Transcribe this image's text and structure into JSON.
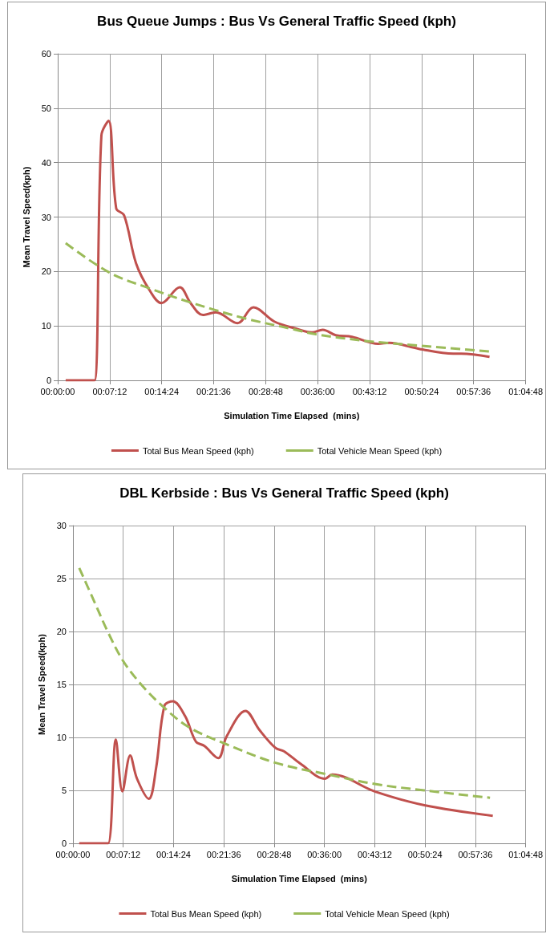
{
  "chart_data": [
    {
      "type": "line",
      "title": "Bus Queue Jumps : Bus Vs General Traffic Speed (kph)",
      "xlabel": "Simulation Time Elapsed  (mins)",
      "ylabel": "Mean Travel Speed(kph)",
      "xlim": [
        0,
        64.8
      ],
      "xticks": [
        {
          "value": 0,
          "label": "00:00:00"
        },
        {
          "value": 7.2,
          "label": "00:07:12"
        },
        {
          "value": 14.4,
          "label": "00:14:24"
        },
        {
          "value": 21.6,
          "label": "00:21:36"
        },
        {
          "value": 28.8,
          "label": "00:28:48"
        },
        {
          "value": 36,
          "label": "00:36:00"
        },
        {
          "value": 43.2,
          "label": "00:43:12"
        },
        {
          "value": 50.4,
          "label": "00:50:24"
        },
        {
          "value": 57.6,
          "label": "00:57:36"
        },
        {
          "value": 64.8,
          "label": "01:04:48"
        }
      ],
      "ylim": [
        0,
        60
      ],
      "yticks": [
        0,
        10,
        20,
        30,
        40,
        50,
        60
      ],
      "grid": true,
      "legend": "bottom",
      "marker": "none",
      "series": [
        {
          "name": "Total Bus Mean Speed (kph)",
          "color": "#c0504d",
          "line_style": "solid",
          "x": [
            1.1,
            4.2,
            5.1,
            6.05,
            7.05,
            8.1,
            9.2,
            10.85,
            12.7,
            14.35,
            16.9,
            18.4,
            20.1,
            21.9,
            24.9,
            27.1,
            30.0,
            33.0,
            35.2,
            36.7,
            38.5,
            40.75,
            44.4,
            45.9,
            50.0,
            54.8,
            55.9,
            59.8
          ],
          "values": [
            0,
            0,
            0,
            45,
            47.7,
            31.6,
            30.3,
            21.5,
            16.6,
            14.2,
            17.1,
            14.2,
            12.0,
            12.5,
            10.5,
            13.4,
            10.8,
            9.5,
            8.8,
            9.3,
            8.3,
            8.0,
            6.7,
            6.9,
            5.8,
            4.9,
            4.9,
            4.3
          ]
        },
        {
          "name": "Total Vehicle Mean Speed (kph)",
          "color": "#9bbb59",
          "line_style": "dashed",
          "x": [
            1.1,
            7.15,
            12.7,
            18.2,
            25.6,
            32.6,
            35.6,
            42.9,
            50.0,
            59.8
          ],
          "values": [
            25.2,
            19.8,
            16.9,
            14.4,
            11.5,
            9.4,
            8.5,
            7.2,
            6.4,
            5.3
          ]
        }
      ]
    },
    {
      "type": "line",
      "title": "DBL Kerbside : Bus Vs General Traffic Speed (kph)",
      "xlabel": "Simulation Time Elapsed  (mins)",
      "ylabel": "Mean Travel Speed(kph)",
      "xlim": [
        0,
        64.8
      ],
      "xticks": [
        {
          "value": 0,
          "label": "00:00:00"
        },
        {
          "value": 7.2,
          "label": "00:07:12"
        },
        {
          "value": 14.4,
          "label": "00:14:24"
        },
        {
          "value": 21.6,
          "label": "00:21:36"
        },
        {
          "value": 28.8,
          "label": "00:28:48"
        },
        {
          "value": 36,
          "label": "00:36:00"
        },
        {
          "value": 43.2,
          "label": "00:43:12"
        },
        {
          "value": 50.4,
          "label": "00:50:24"
        },
        {
          "value": 57.6,
          "label": "00:57:36"
        },
        {
          "value": 64.8,
          "label": "01:04:48"
        }
      ],
      "ylim": [
        0,
        30
      ],
      "yticks": [
        0,
        5,
        10,
        15,
        20,
        25,
        30
      ],
      "grid": true,
      "legend": "bottom",
      "marker": "none",
      "series": [
        {
          "name": "Total Bus Mean Speed (kph)",
          "color": "#c0504d",
          "line_style": "solid",
          "x": [
            0.9,
            4.06,
            5.04,
            6.14,
            7.08,
            8.19,
            9.17,
            10.86,
            11.9,
            13.1,
            14.3,
            16.06,
            17.6,
            18.8,
            20.8,
            22.0,
            24.7,
            26.7,
            29.0,
            30.2,
            32.6,
            36.1,
            37.1,
            43.2,
            50.3,
            60.1
          ],
          "values": [
            0,
            0,
            0,
            9.8,
            4.9,
            8.3,
            6.1,
            4.2,
            7.1,
            13.0,
            13.4,
            12.0,
            9.6,
            9.2,
            8.05,
            10.1,
            12.5,
            10.7,
            9.0,
            8.7,
            7.5,
            6.1,
            6.5,
            4.9,
            3.6,
            2.6
          ]
        },
        {
          "name": "Total Vehicle Mean Speed (kph)",
          "color": "#9bbb59",
          "line_style": "dashed",
          "x": [
            0.9,
            3.07,
            5.04,
            7.2,
            9.76,
            12.9,
            16.5,
            21.8,
            29.0,
            36.5,
            43.2,
            50.3,
            59.7
          ],
          "values": [
            26.0,
            22.8,
            19.9,
            17.2,
            15.0,
            12.9,
            11.0,
            9.4,
            7.6,
            6.5,
            5.6,
            5.0,
            4.3
          ]
        }
      ]
    }
  ]
}
